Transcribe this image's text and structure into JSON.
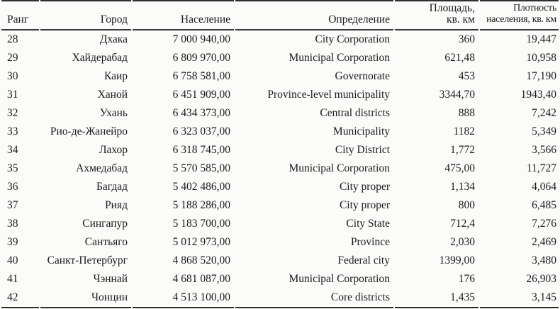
{
  "page": {
    "background": "#fbfbfa",
    "text_color": "#1b1b1b",
    "rule_color": "#2e2e2e"
  },
  "table": {
    "columns": [
      {
        "key": "rank",
        "align": "left",
        "label_lines": [
          "Ранг"
        ]
      },
      {
        "key": "city",
        "align": "right",
        "label_lines": [
          "Город"
        ]
      },
      {
        "key": "population",
        "align": "right",
        "label_lines": [
          "Население"
        ]
      },
      {
        "key": "definition",
        "align": "right",
        "label_lines": [
          "Определение"
        ]
      },
      {
        "key": "area",
        "align": "right",
        "label_lines": [
          "Площадь,",
          "кв. км"
        ]
      },
      {
        "key": "density",
        "align": "right",
        "label_lines": [
          "Плотность",
          "населения, кв. км"
        ],
        "small": true
      }
    ],
    "rows": [
      [
        "28",
        "Дхака",
        "7 000 940,00",
        "City Corporation",
        "360",
        "19,447"
      ],
      [
        "29",
        "Хайдерабад",
        "6 809 970,00",
        "Municipal Corporation",
        "621,48",
        "10,958"
      ],
      [
        "30",
        "Каир",
        "6 758 581,00",
        "Governorate",
        "453",
        "17,190"
      ],
      [
        "31",
        "Ханой",
        "6 451 909,00",
        "Province-level municipality",
        "3344,70",
        "1943,40"
      ],
      [
        "32",
        "Ухань",
        "6 434 373,00",
        "Central districts",
        "888",
        "7,242"
      ],
      [
        "33",
        "Рио-де-Жанейро",
        "6 323 037,00",
        "Municipality",
        "1182",
        "5,349"
      ],
      [
        "34",
        "Лахор",
        "6 318 745,00",
        "City District",
        "1,772",
        "3,566"
      ],
      [
        "35",
        "Ахмедабад",
        "5 570 585,00",
        "Municipal Corporation",
        "475,00",
        "11,727"
      ],
      [
        "36",
        "Багдад",
        "5 402 486,00",
        "City proper",
        "1,134",
        "4,064"
      ],
      [
        "37",
        "Рияд",
        "5 188 286,00",
        "City proper",
        "800",
        "6,485"
      ],
      [
        "38",
        "Сингапур",
        "5 183 700,00",
        "City State",
        "712,4",
        "7,276"
      ],
      [
        "39",
        "Сантьяго",
        "5 012 973,00",
        "Province",
        "2,030",
        "2,469"
      ],
      [
        "40",
        "Санкт-Петербург",
        "4 868 520,00",
        "Federal city",
        "1399,00",
        "3,480"
      ],
      [
        "41",
        "Чэннай",
        "4 681 087,00",
        "Municipal Corporation",
        "176",
        "26,903"
      ],
      [
        "42",
        "Чонцин",
        "4 513 100,00",
        "Core districts",
        "1,435",
        "3,145"
      ]
    ]
  }
}
